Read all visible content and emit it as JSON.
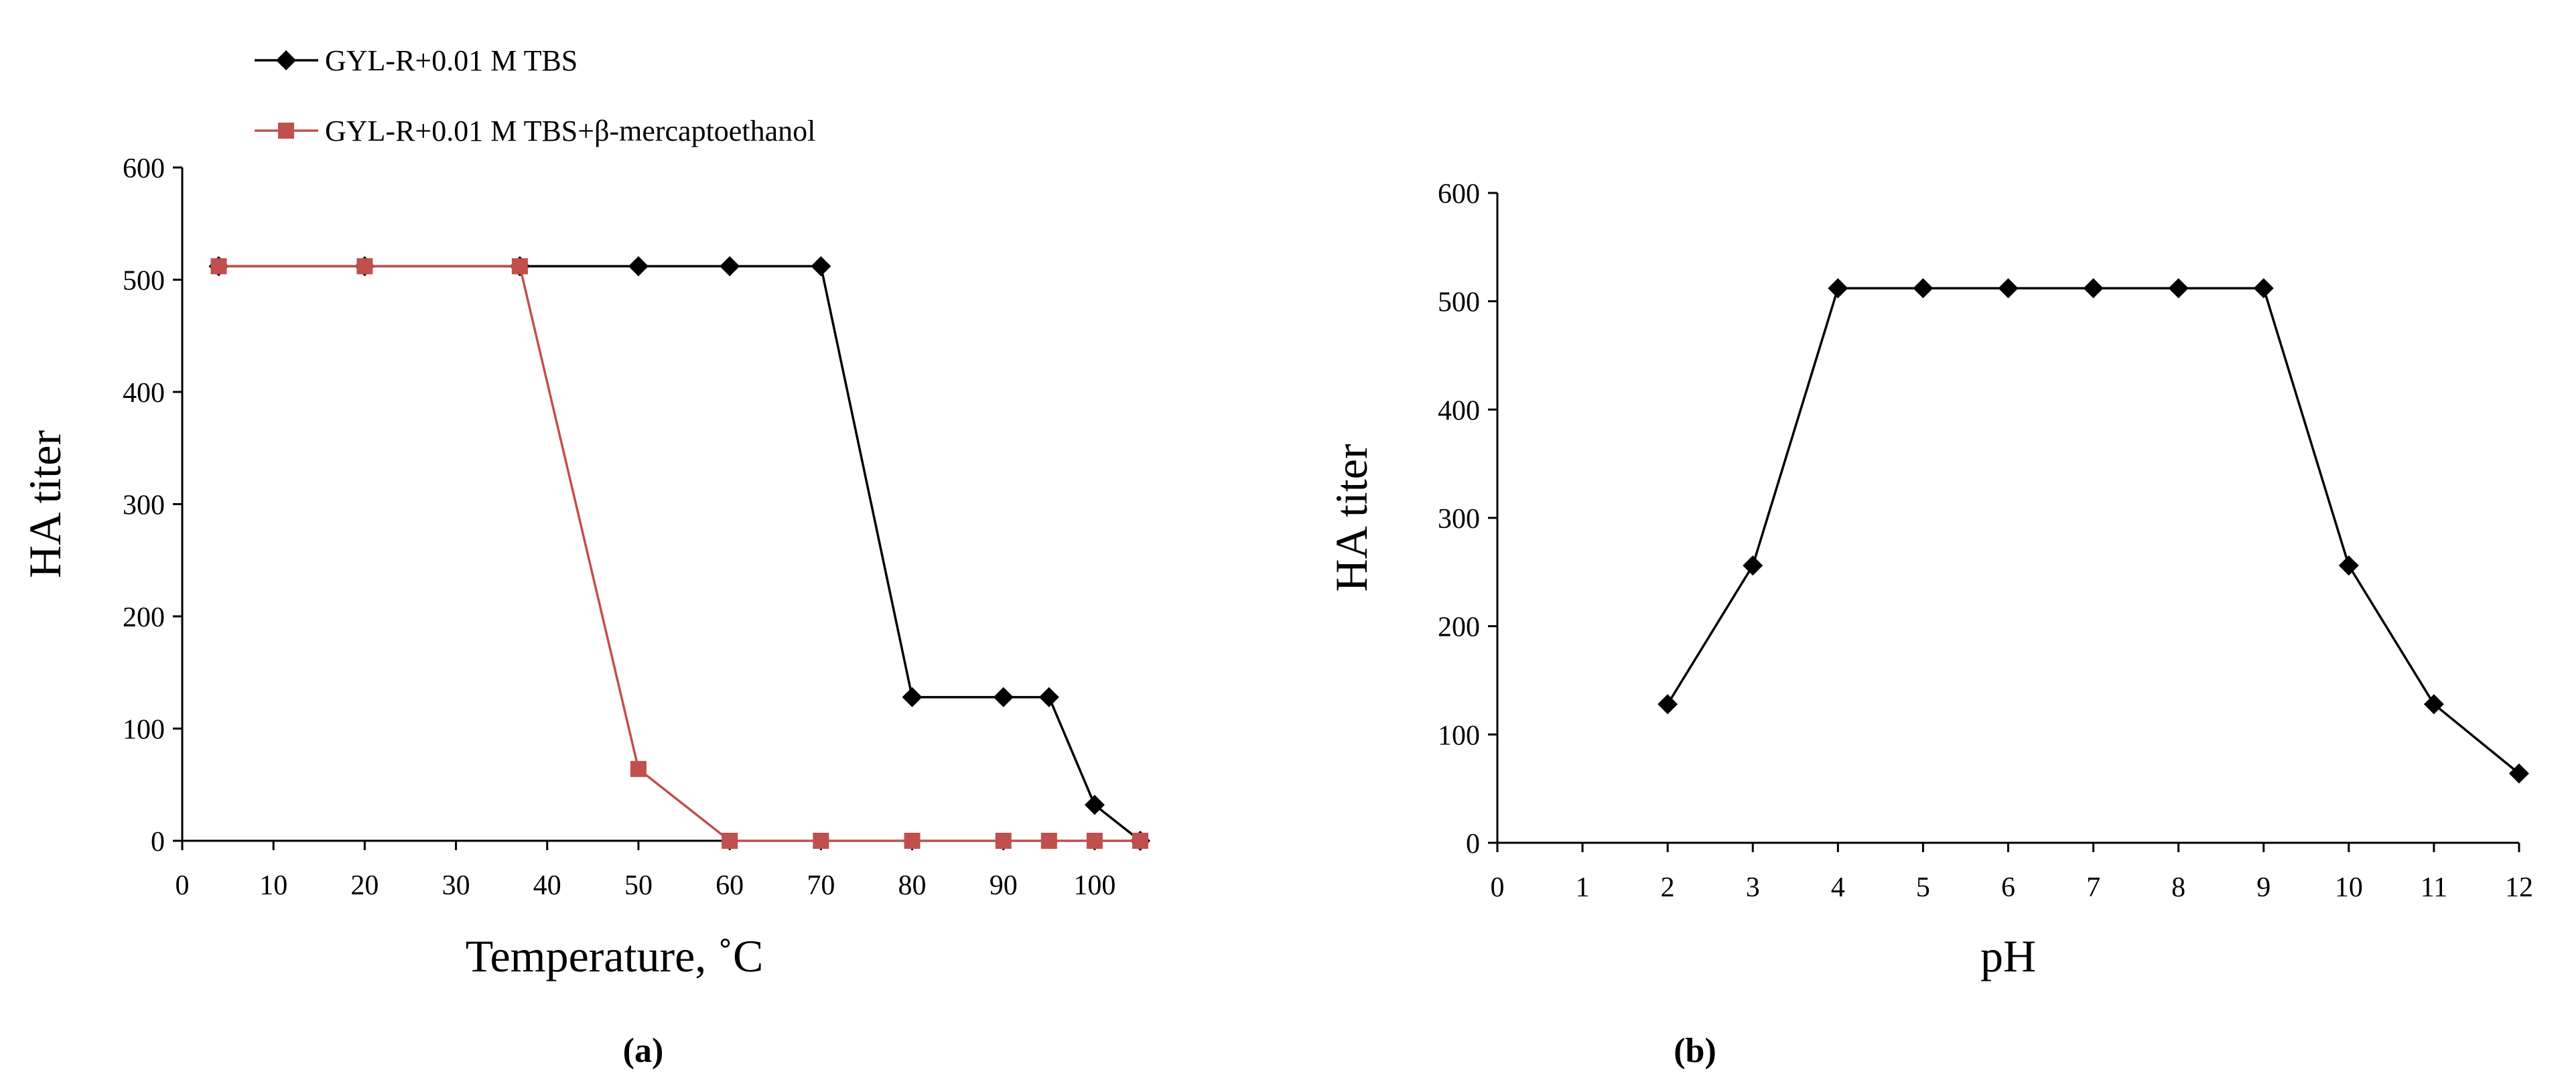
{
  "chart_data": [
    {
      "type": "line",
      "panel": "a",
      "caption": "(a)",
      "title": "",
      "xlabel": "Temperature, ˚C",
      "ylabel": "HA titer",
      "xlim": [
        0,
        105
      ],
      "ylim": [
        0,
        600
      ],
      "xticks": [
        0,
        10,
        20,
        30,
        40,
        50,
        60,
        70,
        80,
        90,
        100
      ],
      "yticks": [
        0,
        100,
        200,
        300,
        400,
        500,
        600
      ],
      "legend_position": "top-left",
      "series": [
        {
          "name": "GYL-R+0.01 M TBS",
          "color": "#000000",
          "marker": "diamond",
          "x": [
            4,
            20,
            37,
            50,
            60,
            70,
            80,
            90,
            95,
            100,
            105
          ],
          "y": [
            512,
            512,
            512,
            512,
            512,
            512,
            128,
            128,
            128,
            32,
            0
          ]
        },
        {
          "name": "GYL-R+0.01 M TBS+β-mercaptoethanol",
          "color": "#c0504d",
          "marker": "square",
          "x": [
            4,
            20,
            37,
            50,
            60,
            70,
            80,
            90,
            95,
            100,
            105
          ],
          "y": [
            512,
            512,
            512,
            64,
            0,
            0,
            0,
            0,
            0,
            0,
            0
          ]
        }
      ]
    },
    {
      "type": "line",
      "panel": "b",
      "caption": "(b)",
      "title": "",
      "xlabel": "pH",
      "ylabel": "HA titer",
      "xlim": [
        0,
        12
      ],
      "ylim": [
        0,
        600
      ],
      "xticks": [
        0,
        1,
        2,
        3,
        4,
        5,
        6,
        7,
        8,
        9,
        10,
        11,
        12
      ],
      "yticks": [
        0,
        100,
        200,
        300,
        400,
        500,
        600
      ],
      "series": [
        {
          "name": "",
          "color": "#000000",
          "marker": "diamond",
          "x": [
            2,
            3,
            4,
            5,
            6,
            7,
            8,
            9,
            10,
            11,
            12
          ],
          "y": [
            128,
            256,
            512,
            512,
            512,
            512,
            512,
            512,
            256,
            128,
            64
          ]
        }
      ]
    }
  ]
}
